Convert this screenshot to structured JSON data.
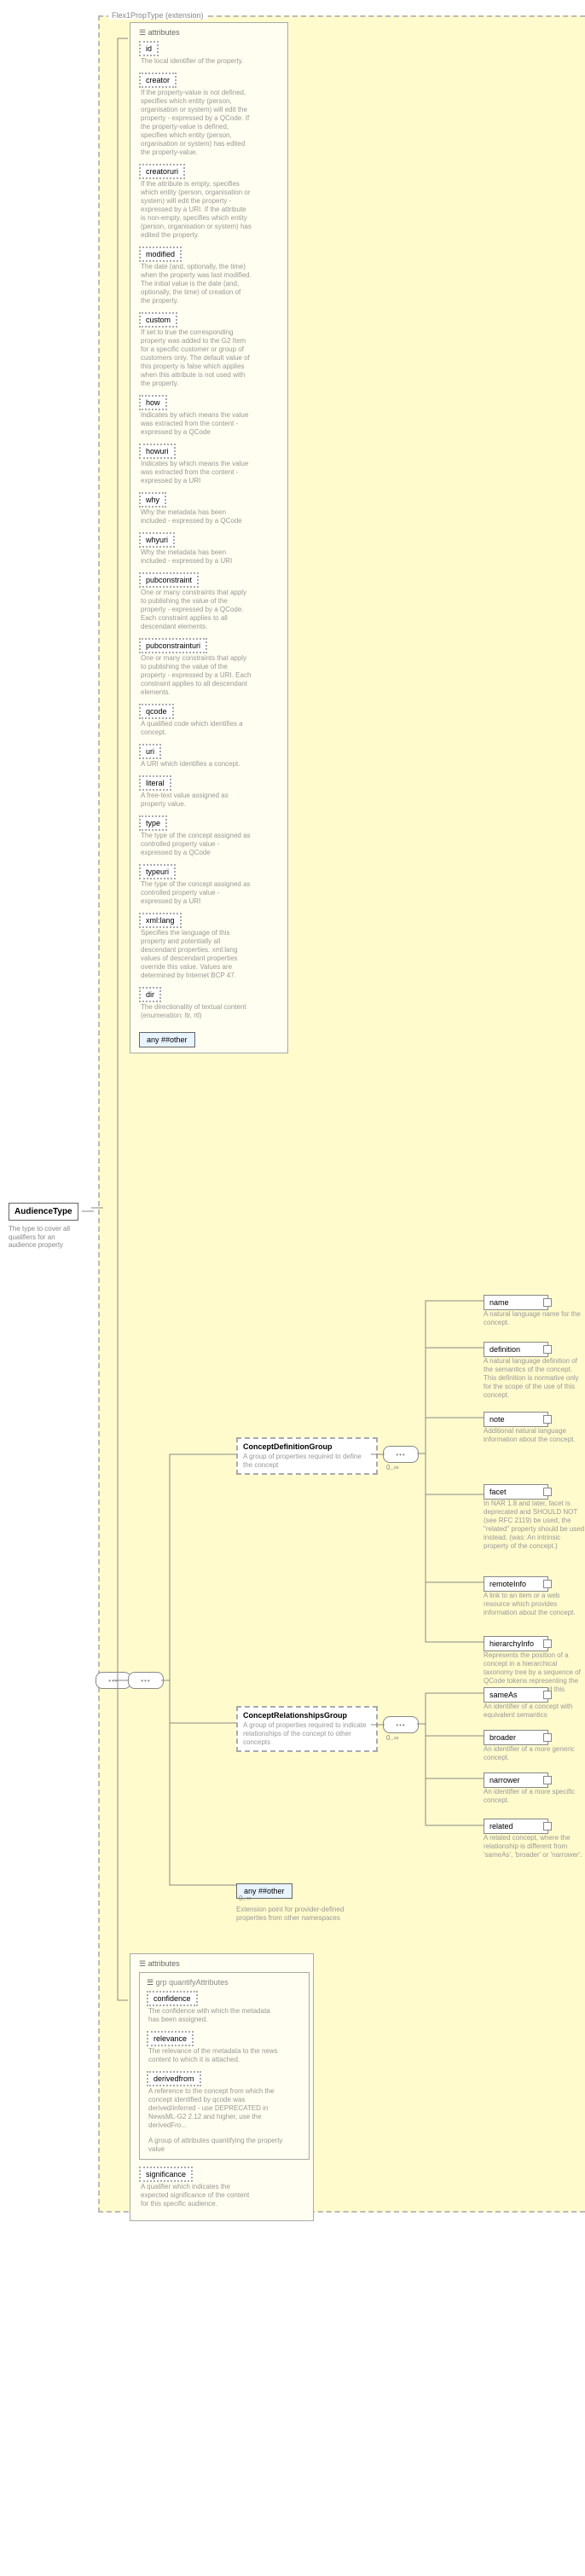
{
  "root": {
    "title": "AudienceType",
    "desc": "The type to cover all qualifiers for an audience property"
  },
  "extension": {
    "title": "Flex1PropType (extension)"
  },
  "topAttributes": {
    "header": "attributes",
    "items": [
      {
        "name": "id",
        "desc": "The local identifier of the property."
      },
      {
        "name": "creator",
        "desc": "If the property-value is not defined, specifies which entity (person, organisation or system) will edit the property - expressed by a QCode. If the property-value is defined, specifies which entity (person, organisation or system) has edited the property-value."
      },
      {
        "name": "creatoruri",
        "desc": "If the attribute is empty, specifies which entity (person, organisation or system) will edit the property - expressed by a URI. If the attribute is non-empty, specifies which entity (person, organisation or system) has edited the property."
      },
      {
        "name": "modified",
        "desc": "The date (and, optionally, the time) when the property was last modified. The initial value is the date (and, optionally, the time) of creation of the property."
      },
      {
        "name": "custom",
        "desc": "If set to true the corresponding property was added to the G2 Item for a specific customer or group of customers only. The default value of this property is false which applies when this attribute is not used with the property."
      },
      {
        "name": "how",
        "desc": "Indicates by which means the value was extracted from the content - expressed by a QCode"
      },
      {
        "name": "howuri",
        "desc": "Indicates by which means the value was extracted from the content - expressed by a URI"
      },
      {
        "name": "why",
        "desc": "Why the metadata has been included - expressed by a QCode"
      },
      {
        "name": "whyuri",
        "desc": "Why the metadata has been included - expressed by a URI"
      },
      {
        "name": "pubconstraint",
        "desc": "One or many constraints that apply to publishing the value of the property - expressed by a QCode. Each constraint applies to all descendant elements."
      },
      {
        "name": "pubconstrainturi",
        "desc": "One or many constraints that apply to publishing the value of the property - expressed by a URI. Each constraint applies to all descendant elements."
      },
      {
        "name": "qcode",
        "desc": "A qualified code which identifies a concept."
      },
      {
        "name": "uri",
        "desc": "A URI which identifies a concept."
      },
      {
        "name": "literal",
        "desc": "A free-text value assigned as property value."
      },
      {
        "name": "type",
        "desc": "The type of the concept assigned as controlled property value - expressed by a QCode"
      },
      {
        "name": "typeuri",
        "desc": "The type of the concept assigned as controlled property value - expressed by a URI"
      },
      {
        "name": "xml:lang",
        "desc": "Specifies the language of this property and potentially all descendant properties. xml:lang values of descendant properties override this value. Values are determined by Internet BCP 47."
      },
      {
        "name": "dir",
        "desc": "The directionality of textual content (enumeration: ltr, rtl)"
      }
    ],
    "any": "any ##other"
  },
  "conceptDefGroup": {
    "label": "ConceptDefinitionGroup",
    "desc": "A group of properties required to define the concept",
    "card": "0..∞",
    "children": [
      {
        "name": "name",
        "desc": "A natural language name for the concept."
      },
      {
        "name": "definition",
        "desc": "A natural language definition of the semantics of the concept. This definition is normative only for the scope of the use of this concept."
      },
      {
        "name": "note",
        "desc": "Additional natural language information about the concept."
      },
      {
        "name": "facet",
        "desc": "In NAR 1.8 and later, facet is deprecated and SHOULD NOT (see RFC 2119) be used, the \"related\" property should be used instead. (was: An intrinsic property of the concept.)"
      },
      {
        "name": "remoteInfo",
        "desc": "A link to an item or a web resource which provides information about the concept."
      },
      {
        "name": "hierarchyInfo",
        "desc": "Represents the position of a concept in a hierarchical taxonomy tree by a sequence of QCode tokens representing the ancestor concepts and this concept"
      }
    ]
  },
  "conceptRelGroup": {
    "label": "ConceptRelationshipsGroup",
    "desc": "A group of properties required to indicate relationships of the concept to other concepts",
    "card": "0..∞",
    "children": [
      {
        "name": "sameAs",
        "desc": "An identifier of a concept with equivalent semantics"
      },
      {
        "name": "broader",
        "desc": "An identifier of a more generic concept."
      },
      {
        "name": "narrower",
        "desc": "An identifier of a more specific concept."
      },
      {
        "name": "related",
        "desc": "A related concept, where the relationship is different from 'sameAs', 'broader' or 'narrower'."
      }
    ]
  },
  "anyOther": {
    "label": "any ##other",
    "desc": "Extension point for provider-defined properties from other namespaces",
    "card": "0..∞"
  },
  "quantify": {
    "header": "attributes",
    "grpLabel": "grp quantifyAttributes",
    "items": [
      {
        "name": "confidence",
        "desc": "The confidence with which the metadata has been assigned."
      },
      {
        "name": "relevance",
        "desc": "The relevance of the metadata to the news content to which it is attached."
      },
      {
        "name": "derivedfrom",
        "desc": "A reference to the concept from which the concept identified by qcode was derived/inferred - use DEPRECATED in NewsML-G2 2.12 and higher, use the derivedFro..."
      }
    ],
    "grpDesc": "A group of attributes quantifying the property value",
    "extra": {
      "name": "significance",
      "desc": "A qualifier which indicates the expected significance of the content for this specific audience."
    }
  }
}
